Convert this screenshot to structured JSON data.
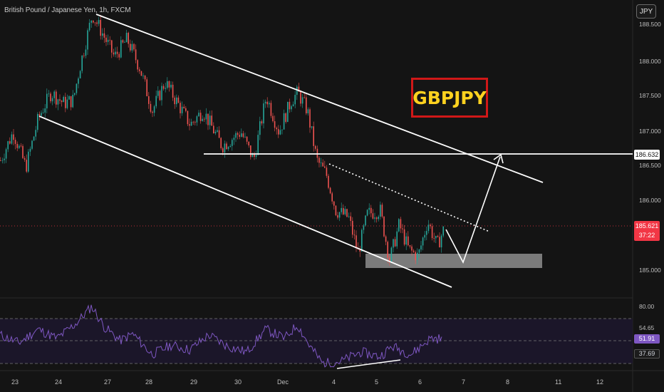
{
  "chart_title": "British Pound / Japanese Yen, 1h, FXCM",
  "currency_button": "JPY",
  "pair_badge": "GBPJPY",
  "price_axis": {
    "ticks": [
      "188.500",
      "188.000",
      "187.500",
      "187.000",
      "186.500",
      "186.000",
      "185.000"
    ],
    "level_tag": "186.632",
    "last_price": "185.621",
    "countdown": "37:22"
  },
  "rsi_axis": {
    "ticks": [
      "80.00",
      "54.65",
      "37.69"
    ],
    "value": "51.91"
  },
  "time_axis": [
    "23",
    "24",
    "27",
    "28",
    "29",
    "30",
    "Dec",
    "4",
    "5",
    "6",
    "7",
    "8",
    "11",
    "12"
  ],
  "colors": {
    "background": "#141414",
    "bull_candle": "#26a69a",
    "bear_candle": "#ef5350",
    "rsi_line": "#7e57c2",
    "badge_text": "#ffd21f",
    "badge_border": "#d01818",
    "last_price_tag": "#f23645"
  },
  "chart_data": {
    "type": "line",
    "price_path": [
      {
        "x": 0,
        "y": 186.6
      },
      {
        "x": 0.02,
        "y": 187.0
      },
      {
        "x": 0.04,
        "y": 186.5
      },
      {
        "x": 0.06,
        "y": 187.2
      },
      {
        "x": 0.08,
        "y": 187.55
      },
      {
        "x": 0.1,
        "y": 187.4
      },
      {
        "x": 0.115,
        "y": 187.45
      },
      {
        "x": 0.125,
        "y": 187.9
      },
      {
        "x": 0.145,
        "y": 188.65
      },
      {
        "x": 0.16,
        "y": 188.4
      },
      {
        "x": 0.18,
        "y": 188.05
      },
      {
        "x": 0.2,
        "y": 188.3
      },
      {
        "x": 0.22,
        "y": 187.9
      },
      {
        "x": 0.24,
        "y": 187.3
      },
      {
        "x": 0.26,
        "y": 187.7
      },
      {
        "x": 0.28,
        "y": 187.4
      },
      {
        "x": 0.3,
        "y": 187.1
      },
      {
        "x": 0.32,
        "y": 187.3
      },
      {
        "x": 0.35,
        "y": 186.8
      },
      {
        "x": 0.38,
        "y": 187.0
      },
      {
        "x": 0.4,
        "y": 186.6
      },
      {
        "x": 0.42,
        "y": 187.5
      },
      {
        "x": 0.44,
        "y": 187.0
      },
      {
        "x": 0.46,
        "y": 187.45
      },
      {
        "x": 0.47,
        "y": 187.55
      },
      {
        "x": 0.485,
        "y": 187.3
      },
      {
        "x": 0.5,
        "y": 186.6
      },
      {
        "x": 0.515,
        "y": 186.4
      },
      {
        "x": 0.53,
        "y": 185.9
      },
      {
        "x": 0.55,
        "y": 185.8
      },
      {
        "x": 0.565,
        "y": 185.3
      },
      {
        "x": 0.58,
        "y": 185.85
      },
      {
        "x": 0.6,
        "y": 185.9
      },
      {
        "x": 0.615,
        "y": 185.2
      },
      {
        "x": 0.63,
        "y": 185.7
      },
      {
        "x": 0.645,
        "y": 185.35
      },
      {
        "x": 0.66,
        "y": 185.25
      },
      {
        "x": 0.675,
        "y": 185.75
      },
      {
        "x": 0.69,
        "y": 185.4
      },
      {
        "x": 0.7,
        "y": 185.62
      }
    ],
    "rsi_path": [
      {
        "x": 0,
        "y": 55
      },
      {
        "x": 0.03,
        "y": 48
      },
      {
        "x": 0.06,
        "y": 60
      },
      {
        "x": 0.09,
        "y": 52
      },
      {
        "x": 0.12,
        "y": 65
      },
      {
        "x": 0.145,
        "y": 80
      },
      {
        "x": 0.165,
        "y": 62
      },
      {
        "x": 0.19,
        "y": 50
      },
      {
        "x": 0.21,
        "y": 56
      },
      {
        "x": 0.24,
        "y": 38
      },
      {
        "x": 0.27,
        "y": 46
      },
      {
        "x": 0.3,
        "y": 42
      },
      {
        "x": 0.33,
        "y": 55
      },
      {
        "x": 0.36,
        "y": 45
      },
      {
        "x": 0.39,
        "y": 40
      },
      {
        "x": 0.42,
        "y": 60
      },
      {
        "x": 0.45,
        "y": 52
      },
      {
        "x": 0.47,
        "y": 64
      },
      {
        "x": 0.49,
        "y": 45
      },
      {
        "x": 0.51,
        "y": 30
      },
      {
        "x": 0.54,
        "y": 32
      },
      {
        "x": 0.57,
        "y": 40
      },
      {
        "x": 0.6,
        "y": 36
      },
      {
        "x": 0.62,
        "y": 45
      },
      {
        "x": 0.65,
        "y": 38
      },
      {
        "x": 0.68,
        "y": 52
      },
      {
        "x": 0.7,
        "y": 51.91
      }
    ],
    "horizontal_level": 186.632,
    "rsi_levels": [
      80,
      54.65,
      37.69
    ],
    "support_zone": [
      185.05,
      185.25
    ],
    "y_range": [
      184.9,
      188.75
    ],
    "rsi_range": [
      25,
      85
    ]
  }
}
